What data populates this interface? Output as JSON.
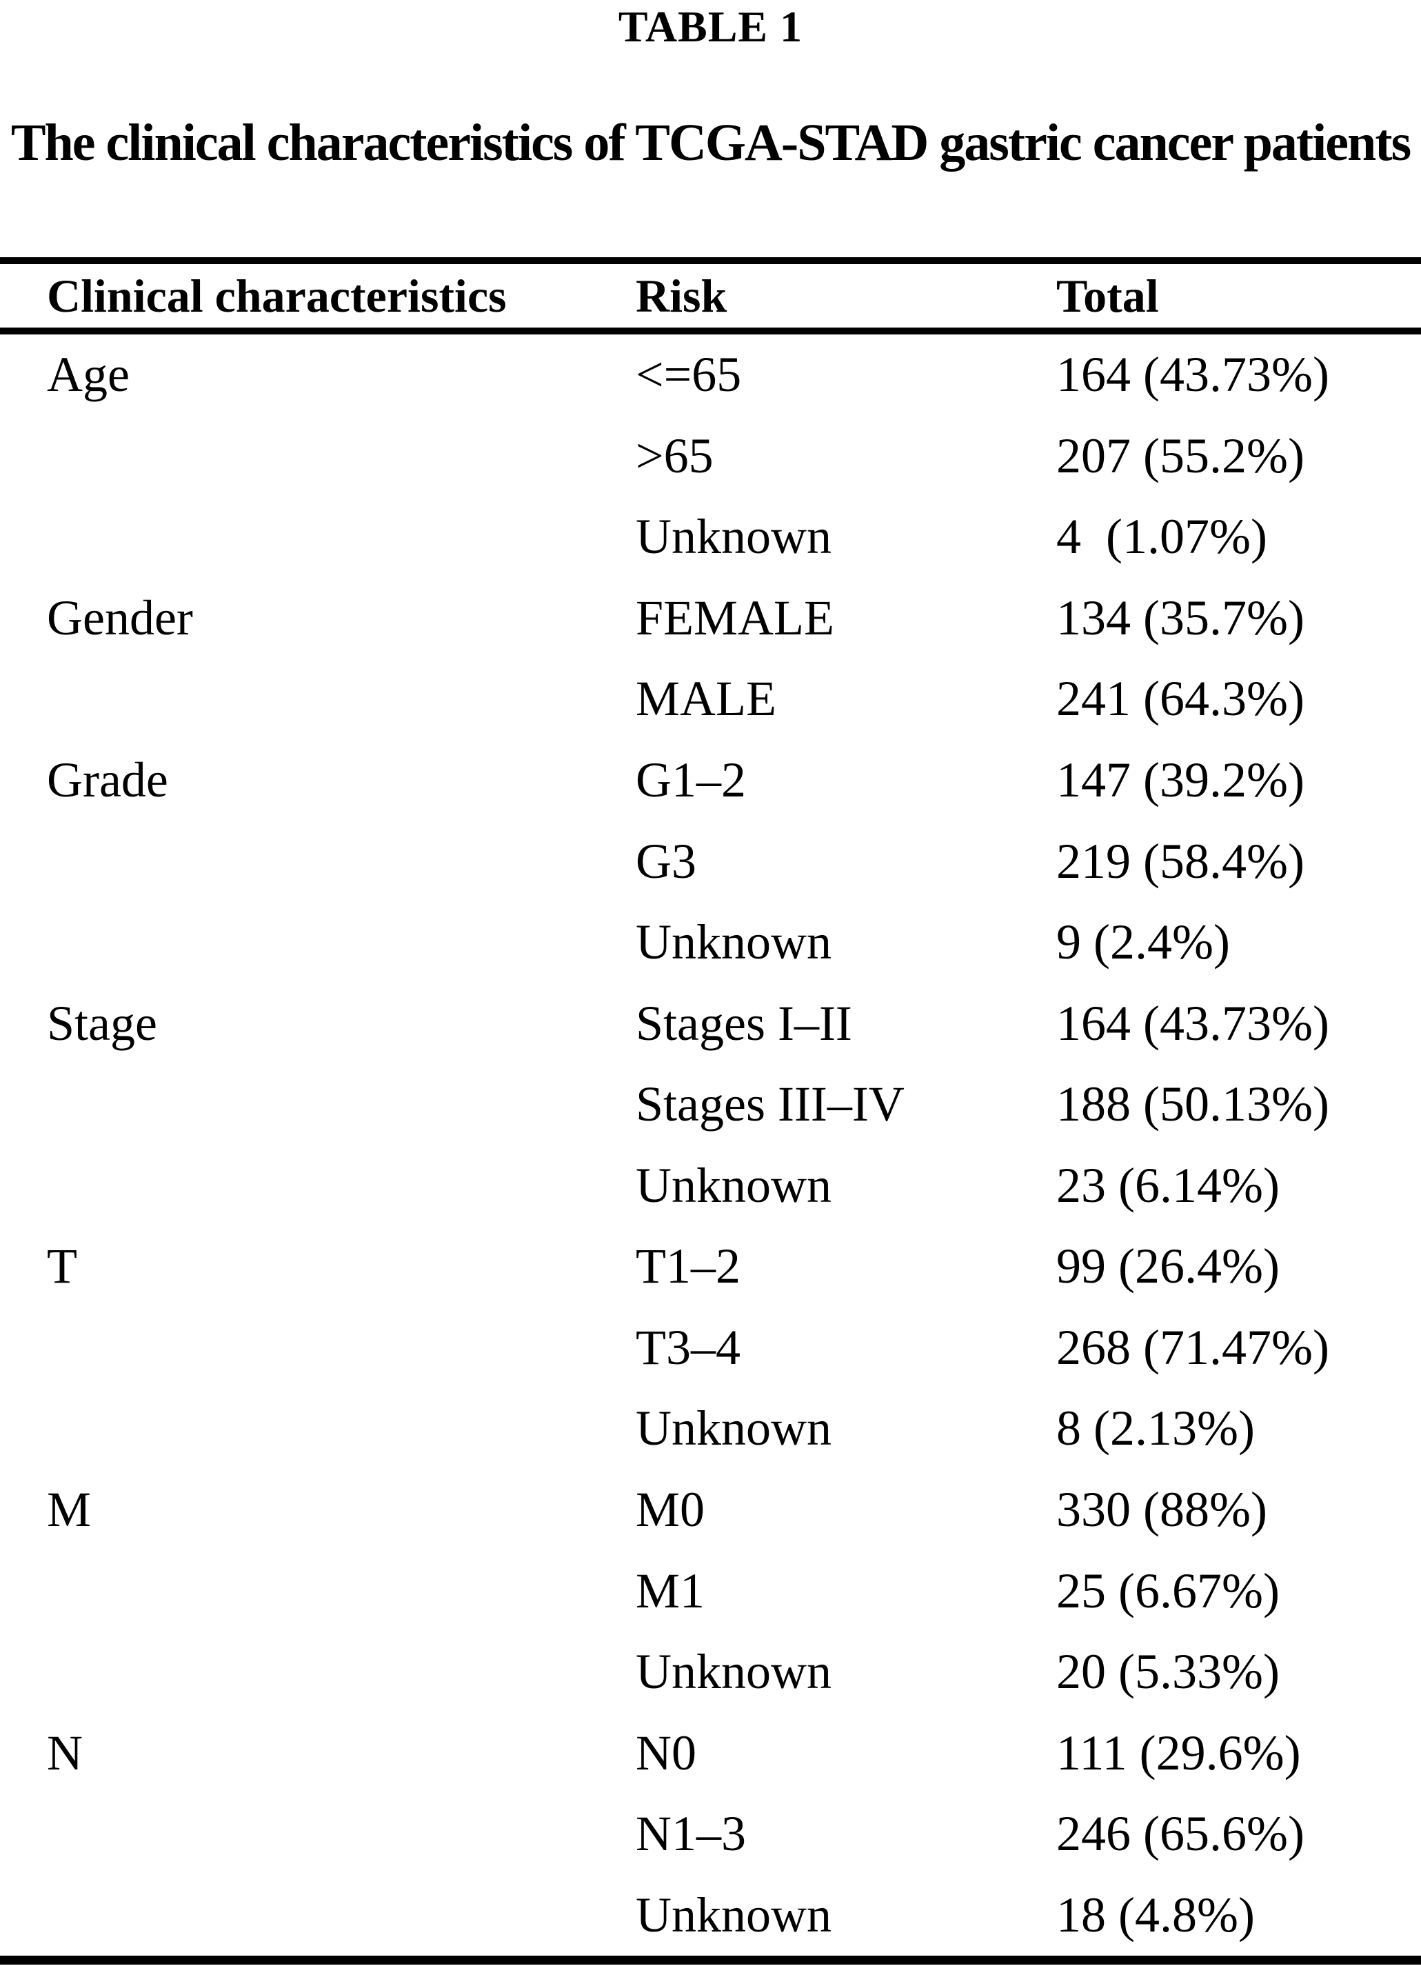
{
  "page": {
    "table_label": "TABLE 1",
    "caption": "The clinical characteristics of TCGA-STAD gastric cancer patients"
  },
  "table": {
    "columns": [
      "Clinical characteristics",
      "Risk",
      "Total"
    ],
    "rows": [
      {
        "characteristic": "Age",
        "risk": "<=65",
        "total": "164 (43.73%)"
      },
      {
        "characteristic": "",
        "risk": ">65",
        "total": "207 (55.2%)"
      },
      {
        "characteristic": "",
        "risk": "Unknown",
        "total": "4  (1.07%)"
      },
      {
        "characteristic": "Gender",
        "risk": "FEMALE",
        "total": "134 (35.7%)"
      },
      {
        "characteristic": "",
        "risk": "MALE",
        "total": "241 (64.3%)"
      },
      {
        "characteristic": "Grade",
        "risk": "G1–2",
        "total": "147 (39.2%)"
      },
      {
        "characteristic": "",
        "risk": "G3",
        "total": "219 (58.4%)"
      },
      {
        "characteristic": "",
        "risk": "Unknown",
        "total": "9 (2.4%)"
      },
      {
        "characteristic": "Stage",
        "risk": "Stages I–II",
        "total": "164 (43.73%)"
      },
      {
        "characteristic": "",
        "risk": "Stages III–IV",
        "total": "188 (50.13%)"
      },
      {
        "characteristic": "",
        "risk": "Unknown",
        "total": "23 (6.14%)"
      },
      {
        "characteristic": "T",
        "risk": "T1–2",
        "total": "99 (26.4%)"
      },
      {
        "characteristic": "",
        "risk": "T3–4",
        "total": "268 (71.47%)"
      },
      {
        "characteristic": "",
        "risk": "Unknown",
        "total": "8 (2.13%)"
      },
      {
        "characteristic": "M",
        "risk": "M0",
        "total": "330 (88%)"
      },
      {
        "characteristic": "",
        "risk": "M1",
        "total": "25 (6.67%)"
      },
      {
        "characteristic": "",
        "risk": "Unknown",
        "total": "20 (5.33%)"
      },
      {
        "characteristic": "N",
        "risk": "N0",
        "total": "111 (29.6%)"
      },
      {
        "characteristic": "",
        "risk": "N1–3",
        "total": "246 (65.6%)"
      },
      {
        "characteristic": "",
        "risk": "Unknown",
        "total": "18 (4.8%)"
      }
    ]
  }
}
